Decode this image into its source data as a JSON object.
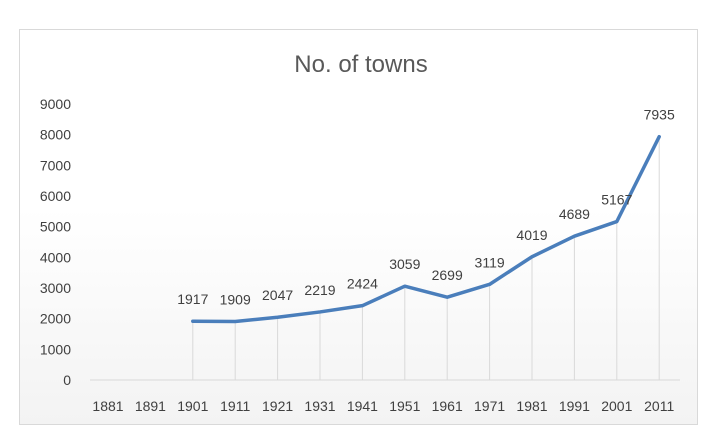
{
  "chart_data": {
    "type": "line",
    "title": "No. of towns",
    "xlabel": "",
    "ylabel": "",
    "categories": [
      "1881",
      "1891",
      "1901",
      "1911",
      "1921",
      "1931",
      "1941",
      "1951",
      "1961",
      "1971",
      "1981",
      "1991",
      "2001",
      "2011"
    ],
    "series": [
      {
        "values": [
          null,
          null,
          1917,
          1909,
          2047,
          2219,
          2424,
          3059,
          2699,
          3119,
          4019,
          4689,
          5167,
          7935
        ]
      }
    ],
    "y_ticks": [
      "0",
      "1000",
      "2000",
      "3000",
      "4000",
      "5000",
      "6000",
      "7000",
      "8000",
      "9000"
    ],
    "data_labels": [
      "",
      "",
      "1917",
      "1909",
      "2047",
      "2219",
      "2424",
      "3059",
      "2699",
      "3119",
      "4019",
      "4689",
      "5167",
      "7935"
    ],
    "ylim": [
      0,
      9000
    ],
    "grid": "vertical drop lines at each category",
    "legend": "none",
    "colors": {
      "line": "#4a7ebb",
      "gridline": "#d9d9d9",
      "text": "#404040",
      "title": "#595959"
    }
  }
}
